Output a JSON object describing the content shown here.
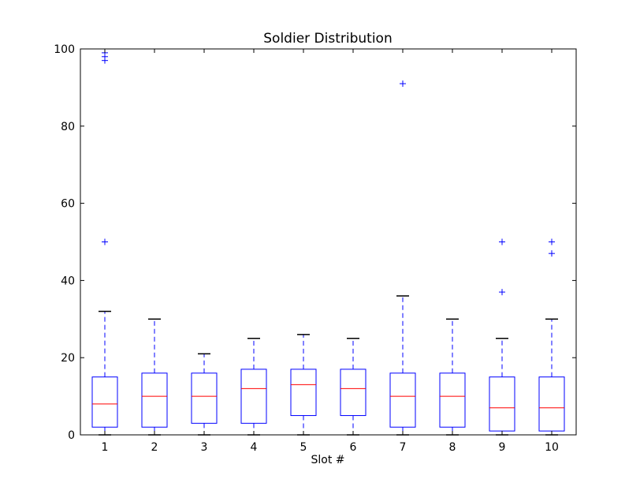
{
  "chart_data": {
    "type": "box",
    "title": "Soldier Distribution",
    "xlabel": "Slot #",
    "ylabel": "",
    "ylim": [
      0,
      100
    ],
    "yticks": [
      0,
      20,
      40,
      60,
      80,
      100
    ],
    "categories": [
      "1",
      "2",
      "3",
      "4",
      "5",
      "6",
      "7",
      "8",
      "9",
      "10"
    ],
    "grid": false,
    "colors": {
      "box": "#0000ff",
      "median": "#ff0000",
      "whisker": "#0000ff",
      "cap": "#000000",
      "flier": "#0000ff"
    },
    "boxes": [
      {
        "label": "1",
        "whisker_low": 0,
        "q1": 2,
        "median": 8,
        "q3": 15,
        "whisker_high": 32,
        "fliers": [
          50,
          97,
          98,
          99
        ]
      },
      {
        "label": "2",
        "whisker_low": 0,
        "q1": 2,
        "median": 10,
        "q3": 16,
        "whisker_high": 30,
        "fliers": []
      },
      {
        "label": "3",
        "whisker_low": 0,
        "q1": 3,
        "median": 10,
        "q3": 16,
        "whisker_high": 21,
        "fliers": []
      },
      {
        "label": "4",
        "whisker_low": 0,
        "q1": 3,
        "median": 12,
        "q3": 17,
        "whisker_high": 25,
        "fliers": []
      },
      {
        "label": "5",
        "whisker_low": 0,
        "q1": 5,
        "median": 13,
        "q3": 17,
        "whisker_high": 26,
        "fliers": []
      },
      {
        "label": "6",
        "whisker_low": 0,
        "q1": 5,
        "median": 12,
        "q3": 17,
        "whisker_high": 25,
        "fliers": []
      },
      {
        "label": "7",
        "whisker_low": 0,
        "q1": 2,
        "median": 10,
        "q3": 16,
        "whisker_high": 36,
        "fliers": [
          91
        ]
      },
      {
        "label": "8",
        "whisker_low": 0,
        "q1": 2,
        "median": 10,
        "q3": 16,
        "whisker_high": 30,
        "fliers": []
      },
      {
        "label": "9",
        "whisker_low": 0,
        "q1": 1,
        "median": 7,
        "q3": 15,
        "whisker_high": 25,
        "fliers": [
          37,
          50
        ]
      },
      {
        "label": "10",
        "whisker_low": 0,
        "q1": 1,
        "median": 7,
        "q3": 15,
        "whisker_high": 30,
        "fliers": [
          47,
          50
        ]
      }
    ]
  }
}
